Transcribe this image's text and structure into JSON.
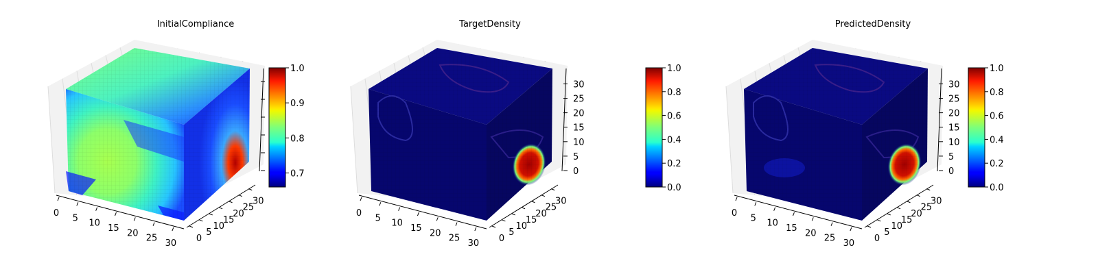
{
  "figure": {
    "colormap": "jet",
    "colors": {
      "background": "#ffffff",
      "pane": "#f2f2f2",
      "grid": "#dddddd"
    }
  },
  "chart_data": [
    {
      "type": "voxel-3d",
      "title": "InitialCompliance",
      "x_ticks": [
        "0",
        "5",
        "10",
        "15",
        "20",
        "25",
        "30"
      ],
      "y_ticks": [
        "0",
        "5",
        "10",
        "15",
        "20",
        "25",
        "30"
      ],
      "z_ticks": [],
      "xlim": [
        0,
        32
      ],
      "ylim": [
        0,
        32
      ],
      "zlim": [
        0,
        32
      ],
      "colorbar": {
        "range": [
          0.66,
          1.0
        ],
        "ticks": [
          "1.0",
          "0.9",
          "0.8",
          "0.7"
        ],
        "tick_values": [
          1.0,
          0.9,
          0.8,
          0.7
        ]
      }
    },
    {
      "type": "voxel-3d",
      "title": "TargetDensity",
      "x_ticks": [
        "0",
        "5",
        "10",
        "15",
        "20",
        "25",
        "30"
      ],
      "y_ticks": [
        "0",
        "5",
        "10",
        "15",
        "20",
        "25",
        "30"
      ],
      "z_ticks": [
        "0",
        "5",
        "10",
        "15",
        "20",
        "25",
        "30"
      ],
      "xlim": [
        0,
        32
      ],
      "ylim": [
        0,
        32
      ],
      "zlim": [
        0,
        32
      ],
      "colorbar": {
        "range": [
          0.0,
          1.0
        ],
        "ticks": [
          "1.0",
          "0.8",
          "0.6",
          "0.4",
          "0.2",
          "0.0"
        ],
        "tick_values": [
          1.0,
          0.8,
          0.6,
          0.4,
          0.2,
          0.0
        ]
      }
    },
    {
      "type": "voxel-3d",
      "title": "PredictedDensity",
      "x_ticks": [
        "0",
        "5",
        "10",
        "15",
        "20",
        "25",
        "30"
      ],
      "y_ticks": [
        "0",
        "5",
        "10",
        "15",
        "20",
        "25",
        "30"
      ],
      "z_ticks": [
        "0",
        "5",
        "10",
        "15",
        "20",
        "25",
        "30"
      ],
      "xlim": [
        0,
        32
      ],
      "ylim": [
        0,
        32
      ],
      "zlim": [
        0,
        32
      ],
      "colorbar": {
        "range": [
          0.0,
          1.0
        ],
        "ticks": [
          "1.0",
          "0.8",
          "0.6",
          "0.4",
          "0.2",
          "0.0"
        ],
        "tick_values": [
          1.0,
          0.8,
          0.6,
          0.4,
          0.2,
          0.0
        ]
      }
    }
  ]
}
